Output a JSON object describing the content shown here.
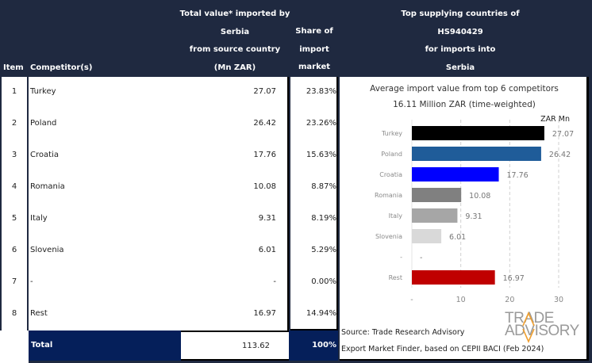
{
  "header": {
    "item": "Item",
    "competitor": "Competitor(s)",
    "value_lines": [
      "Total value* imported by",
      "Serbia",
      "from source country",
      "(Mn ZAR)"
    ],
    "share_lines": [
      "Share of",
      "import",
      "market (%)"
    ],
    "top_lines": [
      "Top supplying countries of",
      "HS940429",
      "for imports into",
      "Serbia"
    ]
  },
  "rows": [
    {
      "item": "1",
      "competitor": "Turkey",
      "value": "27.07",
      "share": "23.83%"
    },
    {
      "item": "2",
      "competitor": "Poland",
      "value": "26.42",
      "share": "23.26%"
    },
    {
      "item": "3",
      "competitor": "Croatia",
      "value": "17.76",
      "share": "15.63%"
    },
    {
      "item": "4",
      "competitor": "Romania",
      "value": "10.08",
      "share": "8.87%"
    },
    {
      "item": "5",
      "competitor": "Italy",
      "value": "9.31",
      "share": "8.19%"
    },
    {
      "item": "6",
      "competitor": "Slovenia",
      "value": "6.01",
      "share": "5.29%"
    },
    {
      "item": "7",
      "competitor": "-",
      "value": "-",
      "share": "0.00%"
    },
    {
      "item": "8",
      "competitor": "Rest",
      "value": "16.97",
      "share": "14.94%"
    }
  ],
  "total": {
    "label": "Total",
    "value": "113.62",
    "share": "100%"
  },
  "source": {
    "line1": "Source: Trade Research Advisory",
    "line2": "Export Market Finder, based on CEPII BACI (Feb 2024)"
  },
  "logo": {
    "line1": "TRADE",
    "line2": "ADVISORY"
  },
  "chart_data": {
    "type": "bar",
    "orientation": "horizontal",
    "title": "Average import value from top 6 competitors",
    "subtitle": "16.11 Million ZAR (time-weighted)",
    "unit_label": "ZAR Mn",
    "categories": [
      "Turkey",
      "Poland",
      "Croatia",
      "Romania",
      "Italy",
      "Slovenia",
      "-",
      "Rest"
    ],
    "values": [
      27.07,
      26.42,
      17.76,
      10.08,
      9.31,
      6.01,
      0,
      16.97
    ],
    "value_labels": [
      "27.07",
      "26.42",
      "17.76",
      "10.08",
      "9.31",
      "6.01",
      "-",
      "16.97"
    ],
    "colors": [
      "#000000",
      "#1f5c99",
      "#0000ff",
      "#808080",
      "#a6a6a6",
      "#d9d9d9",
      "#ffffff",
      "#c00000"
    ],
    "xlim": [
      0,
      30
    ],
    "xticks": [
      0,
      10,
      20,
      30
    ],
    "xtick_labels": [
      "-",
      "10",
      "20",
      "30"
    ],
    "grid": "vertical-dashed",
    "legend": "none"
  }
}
